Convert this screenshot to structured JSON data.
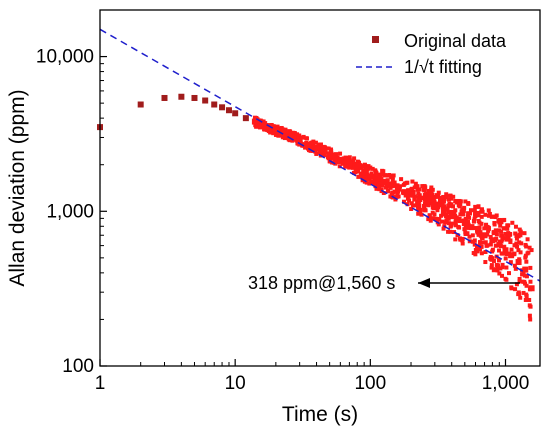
{
  "chart_data": {
    "type": "scatter",
    "title": "",
    "xlabel": "Time (s)",
    "ylabel": "Allan deviation (ppm)",
    "xscale": "log",
    "yscale": "log",
    "xlim": [
      1,
      1800
    ],
    "ylim": [
      100,
      20000
    ],
    "x_ticks": [
      {
        "value": 1,
        "label": "1"
      },
      {
        "value": 10,
        "label": "10"
      },
      {
        "value": 100,
        "label": "100"
      },
      {
        "value": 1000,
        "label": "1,000"
      }
    ],
    "y_ticks": [
      {
        "value": 100,
        "label": "100"
      },
      {
        "value": 1000,
        "label": "1,000"
      },
      {
        "value": 10000,
        "label": "10,000"
      }
    ],
    "grid": false,
    "legend": {
      "placement": "top-right"
    },
    "colors": {
      "original": "#ff1a1a",
      "original_marker": "#a01c1c",
      "fit": "#1f1fcc",
      "arrow": "#000000"
    },
    "series": [
      {
        "name": "Original data",
        "kind": "scatter",
        "points": [
          [
            1,
            3500
          ],
          [
            2,
            4900
          ],
          [
            3,
            5400
          ],
          [
            4,
            5500
          ],
          [
            5,
            5400
          ],
          [
            6,
            5200
          ],
          [
            7,
            4900
          ],
          [
            8,
            4700
          ],
          [
            9,
            4500
          ],
          [
            10,
            4300
          ],
          [
            12,
            4000
          ],
          [
            14,
            3800
          ],
          [
            16,
            3600
          ],
          [
            18,
            3450
          ],
          [
            20,
            3350
          ],
          [
            23,
            3200
          ],
          [
            26,
            3050
          ],
          [
            30,
            2900
          ],
          [
            35,
            2700
          ],
          [
            40,
            2550
          ],
          [
            45,
            2450
          ],
          [
            50,
            2300
          ],
          [
            55,
            2250
          ],
          [
            60,
            2150
          ],
          [
            70,
            2050
          ],
          [
            80,
            1900
          ],
          [
            90,
            1780
          ],
          [
            100,
            1680
          ],
          [
            110,
            1620
          ],
          [
            125,
            1550
          ],
          [
            140,
            1480
          ],
          [
            160,
            1400
          ],
          [
            180,
            1330
          ],
          [
            200,
            1280
          ],
          [
            230,
            1200
          ],
          [
            260,
            1150
          ],
          [
            300,
            1080
          ],
          [
            350,
            1000
          ],
          [
            400,
            930
          ],
          [
            450,
            880
          ],
          [
            500,
            840
          ],
          [
            560,
            790
          ],
          [
            630,
            740
          ],
          [
            700,
            700
          ],
          [
            800,
            650
          ],
          [
            900,
            610
          ],
          [
            1000,
            560
          ],
          [
            1100,
            520
          ],
          [
            1250,
            470
          ],
          [
            1400,
            420
          ],
          [
            1560,
            318
          ]
        ]
      },
      {
        "name": "1/√t fitting",
        "kind": "line",
        "style": "dashed",
        "points": [
          [
            1,
            15000
          ],
          [
            1800,
            354
          ]
        ]
      }
    ],
    "annotations": [
      {
        "text": "318 ppm@1,560 s",
        "x": 1560,
        "y": 318
      }
    ]
  }
}
